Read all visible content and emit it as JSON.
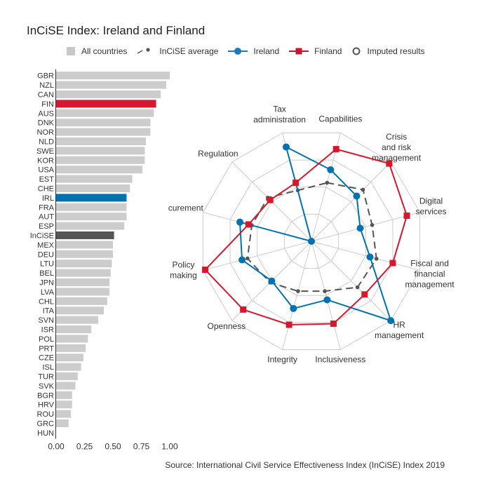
{
  "title": "InCiSE Index: Ireland and Finland",
  "source": "Source: International Civil Service Effectiveness Index (InCiSE) Index 2019",
  "legend": [
    {
      "name": "All countries",
      "icon": "square",
      "color": "#c8c8c8"
    },
    {
      "name": "InCiSE average",
      "icon": "dash-dot",
      "color": "#555555"
    },
    {
      "name": "Ireland",
      "icon": "line-circle",
      "color": "#1d7ab8"
    },
    {
      "name": "Finland",
      "icon": "line-square",
      "color": "#d0112b"
    },
    {
      "name": "Imputed results",
      "icon": "ring",
      "color": "#555555"
    }
  ],
  "colors": {
    "bar": "#cccccc",
    "ireland": "#0071b3",
    "finland": "#d6182f",
    "average": "#555555",
    "grid": "#cccccc"
  },
  "chart_data": [
    {
      "type": "bar",
      "orientation": "horizontal",
      "categories": [
        "GBR",
        "NZL",
        "CAN",
        "FIN",
        "AUS",
        "DNK",
        "NOR",
        "NLD",
        "SWE",
        "KOR",
        "USA",
        "EST",
        "CHE",
        "IRL",
        "FRA",
        "AUT",
        "ESP",
        "InCiSE",
        "MEX",
        "DEU",
        "LTU",
        "BEL",
        "JPN",
        "LVA",
        "CHL",
        "ITA",
        "SVN",
        "ISR",
        "POL",
        "PRT",
        "CZE",
        "ISL",
        "TUR",
        "SVK",
        "BGR",
        "HRV",
        "ROU",
        "GRC",
        "HUN"
      ],
      "values": [
        1.0,
        0.97,
        0.92,
        0.88,
        0.86,
        0.83,
        0.83,
        0.79,
        0.78,
        0.78,
        0.76,
        0.67,
        0.65,
        0.62,
        0.62,
        0.62,
        0.6,
        0.51,
        0.5,
        0.5,
        0.49,
        0.48,
        0.47,
        0.47,
        0.45,
        0.42,
        0.37,
        0.31,
        0.28,
        0.26,
        0.24,
        0.22,
        0.19,
        0.17,
        0.14,
        0.14,
        0.13,
        0.11,
        0.0
      ],
      "highlight": {
        "FIN": "finland",
        "IRL": "ireland",
        "InCiSE": "average"
      },
      "xlim": [
        0,
        1
      ],
      "xticks": [
        "0.00",
        "0.25",
        "0.50",
        "0.75",
        "1.00"
      ]
    },
    {
      "type": "radar",
      "axes": [
        "Capabilities",
        "Crisis and risk management",
        "Digital services",
        "Fiscal and financial management",
        "HR management",
        "Inclusiveness",
        "Integrity",
        "Openness",
        "Policy making",
        "Procurement",
        "Regulation",
        "Tax administration"
      ],
      "axis_labels": [
        [
          "Capabilities"
        ],
        [
          "Crisis",
          "and risk",
          "management"
        ],
        [
          "Digital",
          "services"
        ],
        [
          "Fiscal and",
          "financial",
          "management"
        ],
        [
          "HR",
          "management"
        ],
        [
          "Inclusiveness"
        ],
        [
          "Integrity"
        ],
        [
          "Openness"
        ],
        [
          "Policy",
          "making"
        ],
        [
          "Procurement"
        ],
        [
          "Regulation"
        ],
        [
          "Tax",
          "administration"
        ]
      ],
      "range": [
        0,
        1
      ],
      "series": [
        {
          "name": "InCiSE average",
          "values": [
            0.54,
            0.65,
            0.56,
            0.6,
            0.58,
            0.46,
            0.46,
            0.52,
            0.59,
            0.55,
            0.55,
            0.47
          ]
        },
        {
          "name": "Ireland",
          "values": [
            0.66,
            0.57,
            0.45,
            0.54,
            1.0,
            0.54,
            0.62,
            0.5,
            0.64,
            0.66,
            0.0,
            0.87
          ]
        },
        {
          "name": "Finland",
          "values": [
            0.85,
            0.98,
            0.88,
            0.75,
            0.67,
            0.76,
            0.77,
            0.86,
            0.98,
            0.58,
            0.52,
            0.54
          ]
        }
      ]
    }
  ]
}
